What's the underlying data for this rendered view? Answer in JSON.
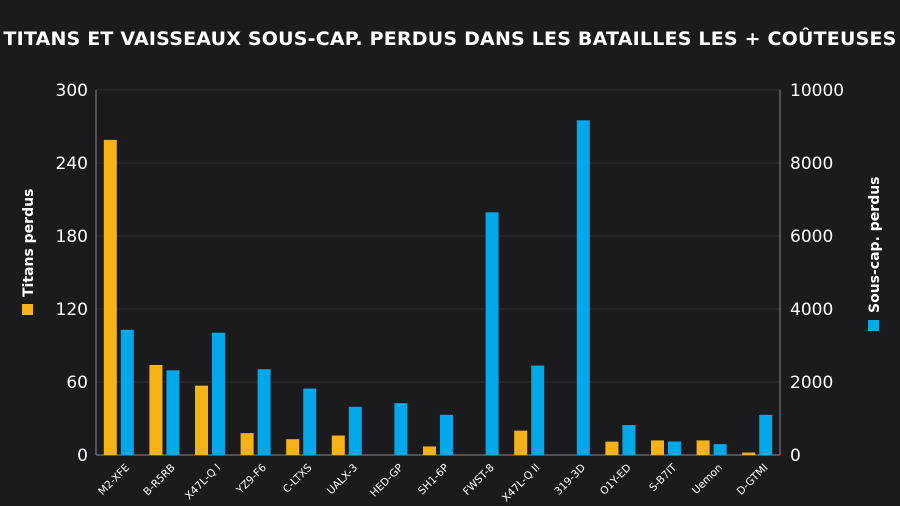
{
  "chart_data": {
    "type": "bar",
    "title": "TITANS ET VAISSEAUX SOUS-CAP. PERDUS DANS LES BATAILLES LES + COÛTEUSES",
    "categories": [
      "M2-XFE",
      "B-R5RB",
      "X47L-Q I",
      "YZ9-F6",
      "C-LTXS",
      "UALX-3",
      "HED-GP",
      "SH1-6P",
      "FWST-8",
      "X47L-Q II",
      "319-3D",
      "O1Y-ED",
      "S-B7IT",
      "Uemon",
      "D-GTMI"
    ],
    "series": [
      {
        "name": "Titans perdus",
        "axis": "left",
        "color": "#f5b31a",
        "values": [
          259,
          74,
          57,
          18,
          13,
          16,
          0,
          7,
          0,
          20,
          0,
          11,
          12,
          12,
          2
        ]
      },
      {
        "name": "Sous-cap. perdus",
        "axis": "right",
        "color": "#00a8ea",
        "values": [
          3430,
          2320,
          3350,
          2350,
          1820,
          1320,
          1420,
          1100,
          6650,
          2450,
          9170,
          820,
          370,
          300,
          1100
        ]
      }
    ],
    "left_axis": {
      "label": "Titans perdus",
      "min": 0,
      "max": 300,
      "ticks": [
        0,
        60,
        120,
        180,
        240,
        300
      ]
    },
    "right_axis": {
      "label": "Sous-cap. perdus",
      "min": 0,
      "max": 10000,
      "ticks": [
        0,
        2000,
        4000,
        6000,
        8000,
        10000
      ]
    },
    "grid": true,
    "legend": "axis-titles"
  }
}
